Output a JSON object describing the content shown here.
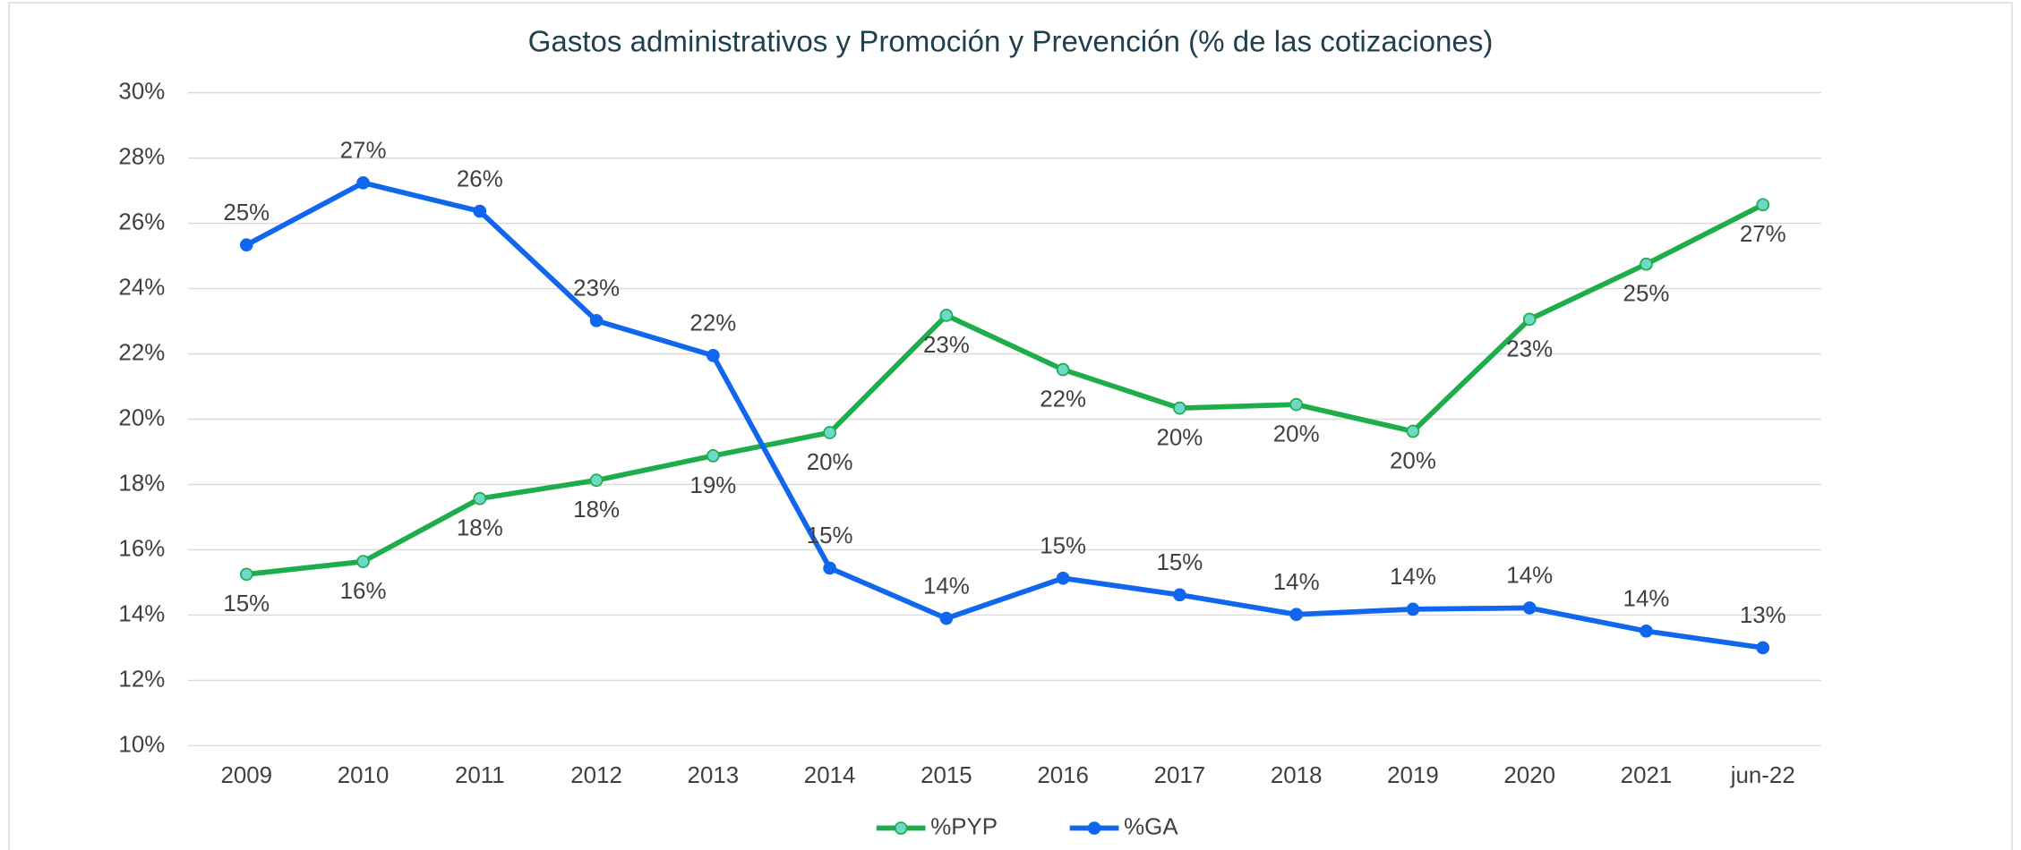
{
  "chart_data": {
    "type": "line",
    "title": "Gastos administrativos y Promoción y Prevención (% de las cotizaciones)",
    "categories": [
      "2009",
      "2010",
      "2011",
      "2012",
      "2013",
      "2014",
      "2015",
      "2016",
      "2017",
      "2018",
      "2019",
      "2020",
      "2021",
      "jun-22"
    ],
    "series": [
      {
        "name": "%PYP",
        "color": "#1fad4b",
        "marker_color": "#6fd9c9",
        "label_position": "below",
        "values": [
          15.25,
          15.64,
          17.57,
          18.13,
          18.88,
          19.59,
          23.18,
          21.52,
          20.34,
          20.45,
          19.63,
          23.06,
          24.75,
          26.57
        ],
        "value_labels": [
          "15%",
          "16%",
          "18%",
          "18%",
          "19%",
          "20%",
          "23%",
          "22%",
          "20%",
          "20%",
          "20%",
          "23%",
          "25%",
          "27%"
        ]
      },
      {
        "name": "%GA",
        "color": "#1166ee",
        "marker_color": "#1166ee",
        "label_position": "above",
        "values": [
          25.34,
          27.24,
          26.37,
          23.02,
          21.95,
          15.44,
          13.9,
          15.13,
          14.62,
          14.02,
          14.18,
          14.22,
          13.51,
          13.0
        ],
        "value_labels": [
          "25%",
          "27%",
          "26%",
          "23%",
          "22%",
          "15%",
          "14%",
          "15%",
          "15%",
          "14%",
          "14%",
          "14%",
          "14%",
          "13%"
        ]
      }
    ],
    "ylim": [
      10,
      30
    ],
    "yticks": [
      {
        "value": 10,
        "label": "10%"
      },
      {
        "value": 12,
        "label": "12%"
      },
      {
        "value": 14,
        "label": "14%"
      },
      {
        "value": 16,
        "label": "16%"
      },
      {
        "value": 18,
        "label": "18%"
      },
      {
        "value": 20,
        "label": "20%"
      },
      {
        "value": 22,
        "label": "22%"
      },
      {
        "value": 24,
        "label": "24%"
      },
      {
        "value": 26,
        "label": "26%"
      },
      {
        "value": 28,
        "label": "28%"
      },
      {
        "value": 30,
        "label": "30%"
      }
    ],
    "grid": true,
    "legend": "bottom"
  }
}
